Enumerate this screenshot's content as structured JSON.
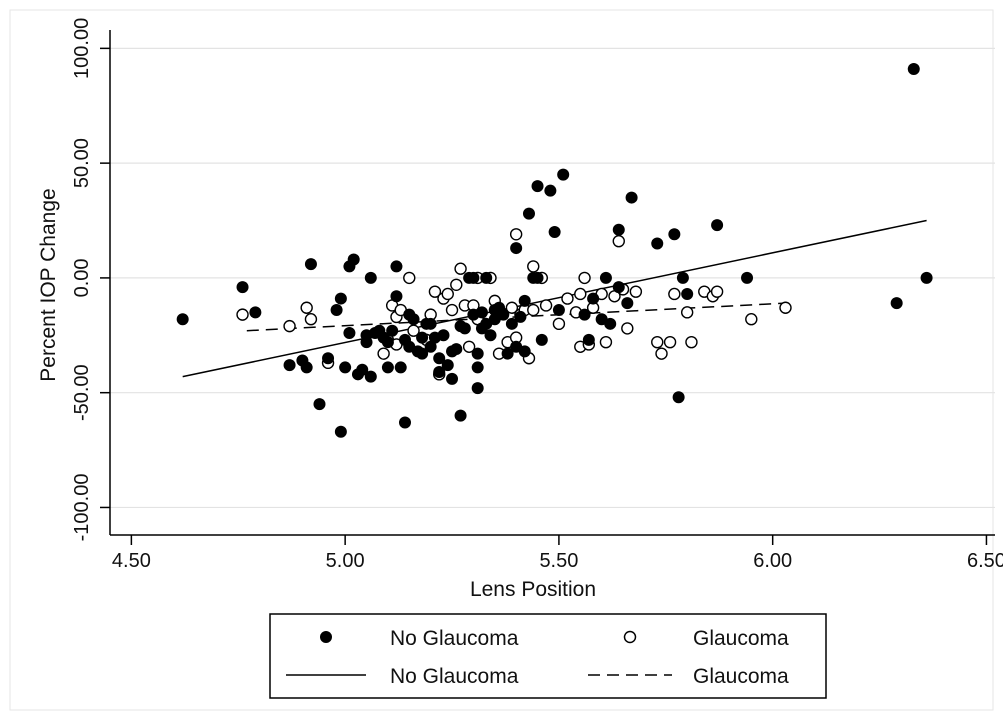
{
  "chart_data": {
    "type": "scatter",
    "xlabel": "Lens Position",
    "ylabel": "Percent IOP Change",
    "xlim": [
      4.45,
      6.52
    ],
    "ylim": [
      -112,
      108
    ],
    "xticks": [
      4.5,
      5.0,
      5.5,
      6.0,
      6.5
    ],
    "xtick_labels": [
      "4.50",
      "5.00",
      "5.50",
      "6.00",
      "6.50"
    ],
    "yticks": [
      -100,
      -50,
      0,
      50,
      100
    ],
    "ytick_labels": [
      "-100.00",
      "-50.00",
      "0.00",
      "50.00",
      "100.00"
    ],
    "grid": "horizontal",
    "legend_position": "bottom",
    "legend": [
      {
        "label": "No Glaucoma",
        "kind": "marker-filled"
      },
      {
        "label": "Glaucoma",
        "kind": "marker-hollow"
      },
      {
        "label": "No Glaucoma",
        "kind": "line-solid"
      },
      {
        "label": "Glaucoma",
        "kind": "line-dashed"
      }
    ],
    "series": [
      {
        "marker": "filled",
        "color": "#000000",
        "points": [
          [
            4.62,
            -18
          ],
          [
            4.76,
            -4
          ],
          [
            4.79,
            -15
          ],
          [
            4.87,
            -38
          ],
          [
            4.9,
            -36
          ],
          [
            4.91,
            -39
          ],
          [
            4.92,
            6
          ],
          [
            4.94,
            -55
          ],
          [
            4.96,
            -35
          ],
          [
            4.98,
            -14
          ],
          [
            4.99,
            -9
          ],
          [
            4.99,
            -67
          ],
          [
            5.0,
            -39
          ],
          [
            5.01,
            -24
          ],
          [
            5.01,
            5
          ],
          [
            5.02,
            8
          ],
          [
            5.03,
            -42
          ],
          [
            5.04,
            -40
          ],
          [
            5.05,
            -25
          ],
          [
            5.05,
            -28
          ],
          [
            5.06,
            -43
          ],
          [
            5.06,
            0
          ],
          [
            5.07,
            -24
          ],
          [
            5.08,
            -23
          ],
          [
            5.09,
            -26
          ],
          [
            5.1,
            -28
          ],
          [
            5.1,
            -39
          ],
          [
            5.11,
            -23
          ],
          [
            5.12,
            5
          ],
          [
            5.12,
            -8
          ],
          [
            5.13,
            -39
          ],
          [
            5.14,
            -27
          ],
          [
            5.14,
            -63
          ],
          [
            5.15,
            -16
          ],
          [
            5.15,
            -30
          ],
          [
            5.16,
            -18
          ],
          [
            5.17,
            -32
          ],
          [
            5.18,
            -33
          ],
          [
            5.18,
            -26
          ],
          [
            5.19,
            -20
          ],
          [
            5.2,
            -20
          ],
          [
            5.2,
            -30
          ],
          [
            5.21,
            -26
          ],
          [
            5.22,
            -35
          ],
          [
            5.22,
            -41
          ],
          [
            5.23,
            -25
          ],
          [
            5.24,
            -38
          ],
          [
            5.25,
            -44
          ],
          [
            5.25,
            -32
          ],
          [
            5.26,
            -31
          ],
          [
            5.27,
            -60
          ],
          [
            5.27,
            -21
          ],
          [
            5.28,
            -22
          ],
          [
            5.29,
            0
          ],
          [
            5.3,
            -16
          ],
          [
            5.3,
            0
          ],
          [
            5.31,
            -39
          ],
          [
            5.31,
            -48
          ],
          [
            5.31,
            -33
          ],
          [
            5.32,
            -15
          ],
          [
            5.32,
            -22
          ],
          [
            5.33,
            -20
          ],
          [
            5.33,
            0
          ],
          [
            5.34,
            -25
          ],
          [
            5.35,
            -18
          ],
          [
            5.35,
            -14
          ],
          [
            5.36,
            -13
          ],
          [
            5.37,
            -16
          ],
          [
            5.38,
            -33
          ],
          [
            5.39,
            -20
          ],
          [
            5.4,
            13
          ],
          [
            5.4,
            -30
          ],
          [
            5.41,
            -17
          ],
          [
            5.42,
            -32
          ],
          [
            5.42,
            -10
          ],
          [
            5.43,
            28
          ],
          [
            5.44,
            0
          ],
          [
            5.45,
            0
          ],
          [
            5.45,
            40
          ],
          [
            5.46,
            -27
          ],
          [
            5.48,
            38
          ],
          [
            5.49,
            20
          ],
          [
            5.5,
            -14
          ],
          [
            5.51,
            45
          ],
          [
            5.56,
            -16
          ],
          [
            5.57,
            -27
          ],
          [
            5.58,
            -9
          ],
          [
            5.6,
            -18
          ],
          [
            5.61,
            0
          ],
          [
            5.62,
            -20
          ],
          [
            5.64,
            21
          ],
          [
            5.64,
            -4
          ],
          [
            5.66,
            -11
          ],
          [
            5.67,
            35
          ],
          [
            5.73,
            15
          ],
          [
            5.77,
            19
          ],
          [
            5.78,
            -52
          ],
          [
            5.79,
            0
          ],
          [
            5.8,
            -7
          ],
          [
            5.87,
            23
          ],
          [
            5.94,
            0
          ],
          [
            6.29,
            -11
          ],
          [
            6.33,
            91
          ],
          [
            6.36,
            0
          ]
        ]
      },
      {
        "marker": "hollow",
        "color": "#000000",
        "points": [
          [
            4.76,
            -16
          ],
          [
            4.87,
            -21
          ],
          [
            4.91,
            -13
          ],
          [
            4.92,
            -18
          ],
          [
            4.96,
            -37
          ],
          [
            5.09,
            -33
          ],
          [
            5.1,
            -27
          ],
          [
            5.11,
            -12
          ],
          [
            5.12,
            -17
          ],
          [
            5.12,
            -29
          ],
          [
            5.13,
            -14
          ],
          [
            5.15,
            0
          ],
          [
            5.16,
            -23
          ],
          [
            5.19,
            -27
          ],
          [
            5.2,
            -16
          ],
          [
            5.21,
            -6
          ],
          [
            5.22,
            -42
          ],
          [
            5.23,
            -9
          ],
          [
            5.24,
            -7
          ],
          [
            5.25,
            -14
          ],
          [
            5.26,
            -3
          ],
          [
            5.27,
            4
          ],
          [
            5.28,
            -12
          ],
          [
            5.29,
            -30
          ],
          [
            5.3,
            -12
          ],
          [
            5.31,
            0
          ],
          [
            5.31,
            -18
          ],
          [
            5.34,
            0
          ],
          [
            5.35,
            -10
          ],
          [
            5.36,
            -33
          ],
          [
            5.38,
            -28
          ],
          [
            5.39,
            -13
          ],
          [
            5.4,
            -26
          ],
          [
            5.4,
            19
          ],
          [
            5.41,
            -16
          ],
          [
            5.42,
            -14
          ],
          [
            5.43,
            -35
          ],
          [
            5.44,
            5
          ],
          [
            5.44,
            -14
          ],
          [
            5.46,
            0
          ],
          [
            5.47,
            -12
          ],
          [
            5.5,
            -20
          ],
          [
            5.52,
            -9
          ],
          [
            5.54,
            -15
          ],
          [
            5.55,
            -7
          ],
          [
            5.55,
            -30
          ],
          [
            5.56,
            0
          ],
          [
            5.57,
            -29
          ],
          [
            5.58,
            -13
          ],
          [
            5.6,
            -7
          ],
          [
            5.61,
            -28
          ],
          [
            5.63,
            -8
          ],
          [
            5.64,
            16
          ],
          [
            5.65,
            -5
          ],
          [
            5.66,
            -22
          ],
          [
            5.68,
            -6
          ],
          [
            5.73,
            -28
          ],
          [
            5.74,
            -33
          ],
          [
            5.76,
            -28
          ],
          [
            5.77,
            -7
          ],
          [
            5.8,
            -15
          ],
          [
            5.81,
            -28
          ],
          [
            5.84,
            -6
          ],
          [
            5.86,
            -8
          ],
          [
            5.87,
            -6
          ],
          [
            5.95,
            -18
          ],
          [
            6.03,
            -13
          ]
        ]
      }
    ],
    "fit_lines": [
      {
        "style": "solid",
        "from": [
          4.62,
          -43
        ],
        "to": [
          6.36,
          25
        ]
      },
      {
        "style": "dashed",
        "from": [
          4.77,
          -23
        ],
        "to": [
          6.03,
          -11
        ]
      }
    ]
  }
}
